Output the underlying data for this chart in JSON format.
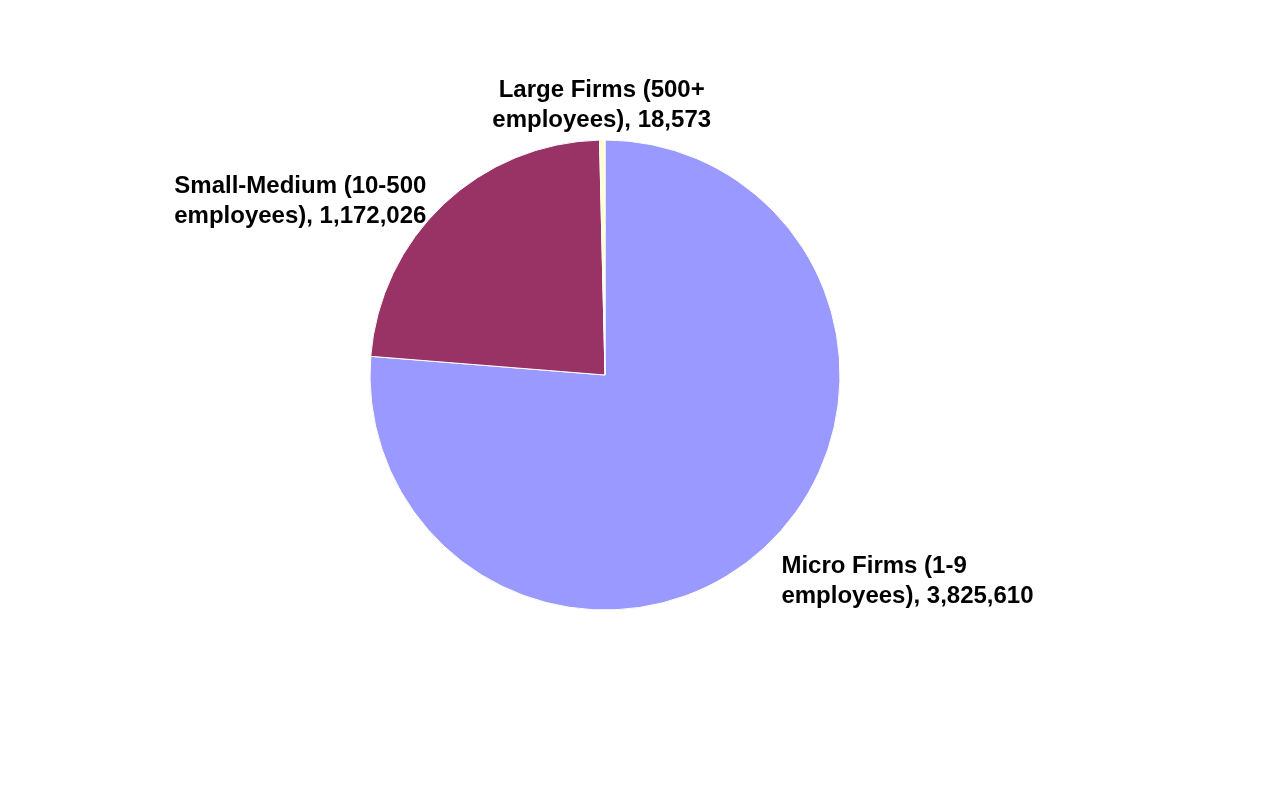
{
  "chart_data": {
    "type": "pie",
    "categories": [
      "Micro Firms (1-9 employees)",
      "Small-Medium (10-500 employees)",
      "Large Firms (500+ employees)"
    ],
    "values": [
      3825610,
      1172026,
      18573
    ],
    "value_labels": [
      "3,825,610",
      "1,172,026",
      "18,573"
    ],
    "colors": [
      "#9999ff",
      "#993366",
      "#ffffcc"
    ]
  }
}
